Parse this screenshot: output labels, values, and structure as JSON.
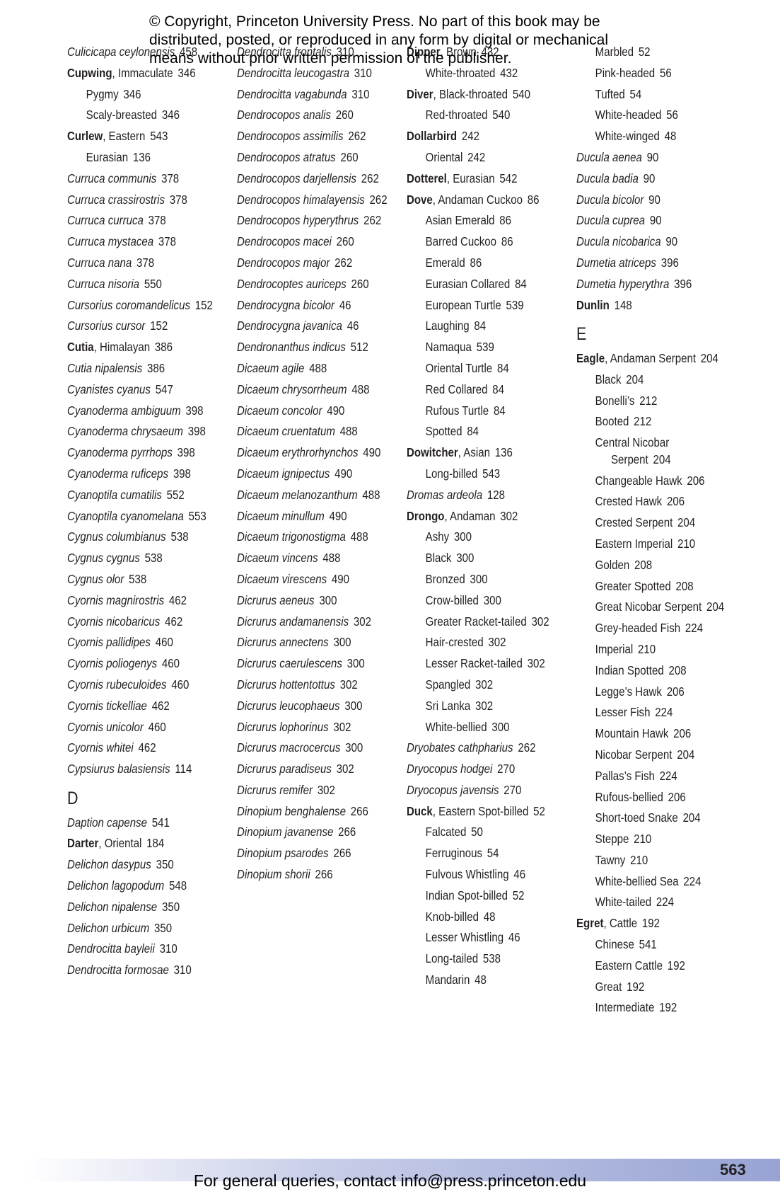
{
  "header": {
    "notice": [
      "© Copyright, Princeton University Press. No part of this book may be",
      "distributed, posted, or reproduced in any form by digital or mechanical",
      "means without prior written permission of the publisher."
    ]
  },
  "columns": [
    [
      {
        "species": "Culicicapa ceylonensis",
        "page": "458"
      },
      {
        "head": "Cupwing",
        "text": ", Immaculate",
        "page": "346"
      },
      {
        "sub": "Pygmy",
        "page": "346"
      },
      {
        "sub": "Scaly-breasted",
        "page": "346"
      },
      {
        "head": "Curlew",
        "text": ", Eastern",
        "page": "543"
      },
      {
        "sub": "Eurasian",
        "page": "136"
      },
      {
        "species": "Curruca communis",
        "page": "378"
      },
      {
        "species": "Curruca crassirostris",
        "page": "378"
      },
      {
        "species": "Curruca curruca",
        "page": "378"
      },
      {
        "species": "Curruca mystacea",
        "page": "378"
      },
      {
        "species": "Curruca nana",
        "page": "378"
      },
      {
        "species": "Curruca nisoria",
        "page": "550"
      },
      {
        "species": "Cursorius coromandelicus",
        "page": "152"
      },
      {
        "species": "Cursorius cursor",
        "page": "152"
      },
      {
        "head": "Cutia",
        "text": ", Himalayan",
        "page": "386"
      },
      {
        "species": "Cutia nipalensis",
        "page": "386"
      },
      {
        "species": "Cyanistes cyanus",
        "page": "547"
      },
      {
        "species": "Cyanoderma ambiguum",
        "page": "398"
      },
      {
        "species": "Cyanoderma chrysaeum",
        "page": "398"
      },
      {
        "species": "Cyanoderma pyrrhops",
        "page": "398"
      },
      {
        "species": "Cyanoderma ruficeps",
        "page": "398"
      },
      {
        "species": "Cyanoptila cumatilis",
        "page": "552"
      },
      {
        "species": "Cyanoptila cyanomelana",
        "page": "553"
      },
      {
        "species": "Cygnus columbianus",
        "page": "538"
      },
      {
        "species": "Cygnus cygnus",
        "page": "538"
      },
      {
        "species": "Cygnus olor",
        "page": "538"
      },
      {
        "species": "Cyornis magnirostris",
        "page": "462"
      },
      {
        "species": "Cyornis nicobaricus",
        "page": "462"
      },
      {
        "species": "Cyornis pallidipes",
        "page": "460"
      },
      {
        "species": "Cyornis poliogenys",
        "page": "460"
      },
      {
        "species": "Cyornis rubeculoides",
        "page": "460"
      },
      {
        "species": "Cyornis tickelliae",
        "page": "462"
      },
      {
        "species": "Cyornis unicolor",
        "page": "460"
      },
      {
        "species": "Cyornis whitei",
        "page": "462"
      },
      {
        "species": "Cypsiurus balasiensis",
        "page": "114"
      },
      {
        "letter": "D"
      },
      {
        "species": "Daption capense",
        "page": "541"
      },
      {
        "head": "Darter",
        "text": ", Oriental",
        "page": "184"
      },
      {
        "species": "Delichon dasypus",
        "page": "350"
      },
      {
        "species": "Delichon lagopodum",
        "page": "548"
      },
      {
        "species": "Delichon nipalense",
        "page": "350"
      },
      {
        "species": "Delichon urbicum",
        "page": "350"
      },
      {
        "species": "Dendrocitta bayleii",
        "page": "310"
      },
      {
        "species": "Dendrocitta formosae",
        "page": "310"
      }
    ],
    [
      {
        "species": "Dendrocitta frontalis",
        "page": "310"
      },
      {
        "species": "Dendrocitta leucogastra",
        "page": "310"
      },
      {
        "species": "Dendrocitta vagabunda",
        "page": "310"
      },
      {
        "species": "Dendrocopos analis",
        "page": "260"
      },
      {
        "species": "Dendrocopos assimilis",
        "page": "262"
      },
      {
        "species": "Dendrocopos atratus",
        "page": "260"
      },
      {
        "species": "Dendrocopos darjellensis",
        "page": "262"
      },
      {
        "species": "Dendrocopos himalayensis",
        "page": "262"
      },
      {
        "species": "Dendrocopos hyperythrus",
        "page": "262"
      },
      {
        "species": "Dendrocopos macei",
        "page": "260"
      },
      {
        "species": "Dendrocopos major",
        "page": "262"
      },
      {
        "species": "Dendrocoptes auriceps",
        "page": "260"
      },
      {
        "species": "Dendrocygna bicolor",
        "page": "46"
      },
      {
        "species": "Dendrocygna javanica",
        "page": "46"
      },
      {
        "species": "Dendronanthus indicus",
        "page": "512"
      },
      {
        "species": "Dicaeum agile",
        "page": "488"
      },
      {
        "species": "Dicaeum chrysorrheum",
        "page": "488"
      },
      {
        "species": "Dicaeum concolor",
        "page": "490"
      },
      {
        "species": "Dicaeum cruentatum",
        "page": "488"
      },
      {
        "species": "Dicaeum erythrorhynchos",
        "page": "490"
      },
      {
        "species": "Dicaeum ignipectus",
        "page": "490"
      },
      {
        "species": "Dicaeum melanozanthum",
        "page": "488"
      },
      {
        "species": "Dicaeum minullum",
        "page": "490"
      },
      {
        "species": "Dicaeum trigonostigma",
        "page": "488"
      },
      {
        "species": "Dicaeum vincens",
        "page": "488"
      },
      {
        "species": "Dicaeum virescens",
        "page": "490"
      },
      {
        "species": "Dicrurus aeneus",
        "page": "300"
      },
      {
        "species": "Dicrurus andamanensis",
        "page": "302"
      },
      {
        "species": "Dicrurus annectens",
        "page": "300"
      },
      {
        "species": "Dicrurus caerulescens",
        "page": "300"
      },
      {
        "species": "Dicrurus hottentottus",
        "page": "302"
      },
      {
        "species": "Dicrurus leucophaeus",
        "page": "300"
      },
      {
        "species": "Dicrurus lophorinus",
        "page": "302"
      },
      {
        "species": "Dicrurus macrocercus",
        "page": "300"
      },
      {
        "species": "Dicrurus paradiseus",
        "page": "302"
      },
      {
        "species": "Dicrurus remifer",
        "page": "302"
      },
      {
        "species": "Dinopium benghalense",
        "page": "266"
      },
      {
        "species": "Dinopium javanense",
        "page": "266"
      },
      {
        "species": "Dinopium psarodes",
        "page": "266"
      },
      {
        "species": "Dinopium shorii",
        "page": "266"
      }
    ],
    [
      {
        "head": "Dipper",
        "text": ", Brown",
        "page": "432"
      },
      {
        "sub": "White-throated",
        "page": "432"
      },
      {
        "head": "Diver",
        "text": ", Black-throated",
        "page": "540"
      },
      {
        "sub": "Red-throated",
        "page": "540"
      },
      {
        "head": "Dollarbird",
        "page": "242"
      },
      {
        "sub": "Oriental",
        "page": "242"
      },
      {
        "head": "Dotterel",
        "text": ", Eurasian",
        "page": "542"
      },
      {
        "head": "Dove",
        "text": ", Andaman Cuckoo",
        "page": "86"
      },
      {
        "sub": "Asian Emerald",
        "page": "86"
      },
      {
        "sub": "Barred Cuckoo",
        "page": "86"
      },
      {
        "sub": "Emerald",
        "page": "86"
      },
      {
        "sub": "Eurasian Collared",
        "page": "84"
      },
      {
        "sub": "European Turtle",
        "page": "539"
      },
      {
        "sub": "Laughing",
        "page": "84"
      },
      {
        "sub": "Namaqua",
        "page": "539"
      },
      {
        "sub": "Oriental Turtle",
        "page": "84"
      },
      {
        "sub": "Red Collared",
        "page": "84"
      },
      {
        "sub": "Rufous Turtle",
        "page": "84"
      },
      {
        "sub": "Spotted",
        "page": "84"
      },
      {
        "head": "Dowitcher",
        "text": ", Asian",
        "page": "136"
      },
      {
        "sub": "Long-billed",
        "page": "543"
      },
      {
        "species": "Dromas ardeola",
        "page": "128"
      },
      {
        "head": "Drongo",
        "text": ", Andaman",
        "page": "302"
      },
      {
        "sub": "Ashy",
        "page": "300"
      },
      {
        "sub": "Black",
        "page": "300"
      },
      {
        "sub": "Bronzed",
        "page": "300"
      },
      {
        "sub": "Crow-billed",
        "page": "300"
      },
      {
        "sub": "Greater Racket-tailed",
        "page": "302"
      },
      {
        "sub": "Hair-crested",
        "page": "302"
      },
      {
        "sub": "Lesser Racket-tailed",
        "page": "302"
      },
      {
        "sub": "Spangled",
        "page": "302"
      },
      {
        "sub": "Sri Lanka",
        "page": "302"
      },
      {
        "sub": "White-bellied",
        "page": "300"
      },
      {
        "species": "Dryobates cathpharius",
        "page": "262"
      },
      {
        "species": "Dryocopus hodgei",
        "page": "270"
      },
      {
        "species": "Dryocopus javensis",
        "page": "270"
      },
      {
        "head": "Duck",
        "text": ", Eastern Spot-billed",
        "page": "52"
      },
      {
        "sub": "Falcated",
        "page": "50"
      },
      {
        "sub": "Ferruginous",
        "page": "54"
      },
      {
        "sub": "Fulvous Whistling",
        "page": "46"
      },
      {
        "sub": "Indian Spot-billed",
        "page": "52"
      },
      {
        "sub": "Knob-billed",
        "page": "48"
      },
      {
        "sub": "Lesser Whistling",
        "page": "46"
      },
      {
        "sub": "Long-tailed",
        "page": "538"
      },
      {
        "sub": "Mandarin",
        "page": "48"
      }
    ],
    [
      {
        "sub": "Marbled",
        "page": "52"
      },
      {
        "sub": "Pink-headed",
        "page": "56"
      },
      {
        "sub": "Tufted",
        "page": "54"
      },
      {
        "sub": "White-headed",
        "page": "56"
      },
      {
        "sub": "White-winged",
        "page": "48"
      },
      {
        "species": "Ducula aenea",
        "page": "90"
      },
      {
        "species": "Ducula badia",
        "page": "90"
      },
      {
        "species": "Ducula bicolor",
        "page": "90"
      },
      {
        "species": "Ducula cuprea",
        "page": "90"
      },
      {
        "species": "Ducula nicobarica",
        "page": "90"
      },
      {
        "species": "Dumetia atriceps",
        "page": "396"
      },
      {
        "species": "Dumetia hyperythra",
        "page": "396"
      },
      {
        "head": "Dunlin",
        "page": "148"
      },
      {
        "letter": "E"
      },
      {
        "head": "Eagle",
        "text": ", Andaman Serpent",
        "page": "204"
      },
      {
        "sub": "Black",
        "page": "204"
      },
      {
        "sub": "Bonelli’s",
        "page": "212"
      },
      {
        "sub": "Booted",
        "page": "212"
      },
      {
        "sub": "Central Nicobar Serpent",
        "page": "204"
      },
      {
        "sub": "Changeable Hawk",
        "page": "206"
      },
      {
        "sub": "Crested Hawk",
        "page": "206"
      },
      {
        "sub": "Crested Serpent",
        "page": "204"
      },
      {
        "sub": "Eastern Imperial",
        "page": "210"
      },
      {
        "sub": "Golden",
        "page": "208"
      },
      {
        "sub": "Greater Spotted",
        "page": "208"
      },
      {
        "sub": "Great Nicobar Serpent",
        "page": "204"
      },
      {
        "sub": "Grey-headed Fish",
        "page": "224"
      },
      {
        "sub": "Imperial",
        "page": "210"
      },
      {
        "sub": "Indian Spotted",
        "page": "208"
      },
      {
        "sub": "Legge’s Hawk",
        "page": "206"
      },
      {
        "sub": "Lesser Fish",
        "page": "224"
      },
      {
        "sub": "Mountain Hawk",
        "page": "206"
      },
      {
        "sub": "Nicobar Serpent",
        "page": "204"
      },
      {
        "sub": "Pallas’s Fish",
        "page": "224"
      },
      {
        "sub": "Rufous-bellied",
        "page": "206"
      },
      {
        "sub": "Short-toed Snake",
        "page": "204"
      },
      {
        "sub": "Steppe",
        "page": "210"
      },
      {
        "sub": "Tawny",
        "page": "210"
      },
      {
        "sub": "White-bellied Sea",
        "page": "224"
      },
      {
        "sub": "White-tailed",
        "page": "224"
      },
      {
        "head": "Egret",
        "text": ", Cattle",
        "page": "192"
      },
      {
        "sub": "Chinese",
        "page": "541"
      },
      {
        "sub": "Eastern Cattle",
        "page": "192"
      },
      {
        "sub": "Great",
        "page": "192"
      },
      {
        "sub": "Intermediate",
        "page": "192"
      }
    ]
  ],
  "footer": {
    "page_number": "563",
    "contact": "For general queries, contact info@press.princeton.edu"
  }
}
